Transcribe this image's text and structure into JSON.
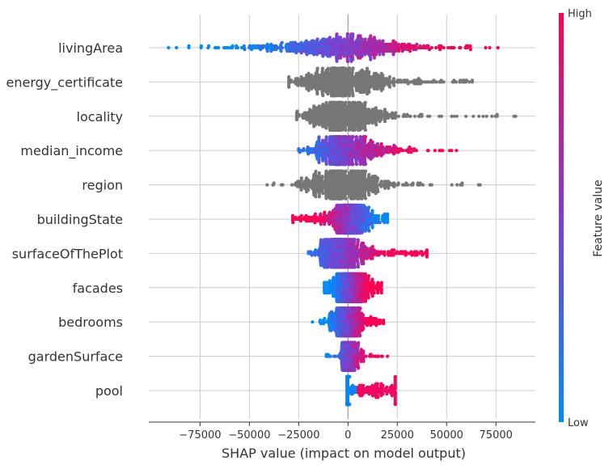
{
  "chart_data": {
    "type": "scatter",
    "subtype": "shap-beeswarm",
    "xlabel": "SHAP value (impact on model output)",
    "xticks": [
      -75000,
      -50000,
      -25000,
      0,
      25000,
      50000,
      75000
    ],
    "xtick_labels": [
      "−75000",
      "−50000",
      "−25000",
      "0",
      "25000",
      "50000",
      "75000"
    ],
    "xlim": [
      -101000,
      95000
    ],
    "grid": true,
    "colorbar": {
      "title": "Feature value",
      "high_label": "High",
      "low_label": "Low",
      "low_color": "#008bfb",
      "high_color": "#ff0052",
      "mid_color": "#7c3fd0",
      "no_value_color": "#777777"
    },
    "features": [
      {
        "name": "livingArea",
        "colored": true,
        "min": -91000,
        "max": 76000,
        "p10": -45000,
        "median": -2000,
        "p90": 32000,
        "core_width": 14000,
        "neg_sign": -1
      },
      {
        "name": "energy_certificate",
        "colored": false,
        "min": -30000,
        "max": 63000,
        "p10": -16000,
        "median": -2000,
        "p90": 24000,
        "core_width": 12000,
        "neg_sign": 0
      },
      {
        "name": "locality",
        "colored": false,
        "min": -26000,
        "max": 85000,
        "p10": -14000,
        "median": -2000,
        "p90": 18000,
        "core_width": 10000,
        "neg_sign": 0
      },
      {
        "name": "median_income",
        "colored": true,
        "min": -25000,
        "max": 55000,
        "p10": -10000,
        "median": -1000,
        "p90": 20000,
        "core_width": 9000,
        "neg_sign": -1
      },
      {
        "name": "region",
        "colored": false,
        "min": -41000,
        "max": 67000,
        "p10": -17000,
        "median": -2000,
        "p90": 16000,
        "core_width": 10000,
        "neg_sign": 0
      },
      {
        "name": "buildingState",
        "colored": true,
        "min": -28000,
        "max": 20000,
        "p10": -15000,
        "median": 1000,
        "p90": 12000,
        "core_width": 4000,
        "neg_sign": 1
      },
      {
        "name": "surfaceOfThePlot",
        "colored": true,
        "min": -20000,
        "max": 40000,
        "p10": -10000,
        "median": -3000,
        "p90": 18000,
        "core_width": 6000,
        "neg_sign": -1
      },
      {
        "name": "facades",
        "colored": true,
        "min": -12000,
        "max": 17000,
        "p10": -7000,
        "median": 1000,
        "p90": 10000,
        "core_width": 4000,
        "neg_sign": -1
      },
      {
        "name": "bedrooms",
        "colored": true,
        "min": -18000,
        "max": 18000,
        "p10": -6000,
        "median": 0,
        "p90": 8000,
        "core_width": 3000,
        "neg_sign": -1
      },
      {
        "name": "gardenSurface",
        "colored": true,
        "min": -11000,
        "max": 20000,
        "p10": -2000,
        "median": 0,
        "p90": 4000,
        "core_width": 1500,
        "neg_sign": -1
      },
      {
        "name": "pool",
        "colored": true,
        "min": -500,
        "max": 24000,
        "p10": -200,
        "median": 0,
        "p90": 20000,
        "core_width": 400,
        "neg_sign": -1
      }
    ]
  }
}
